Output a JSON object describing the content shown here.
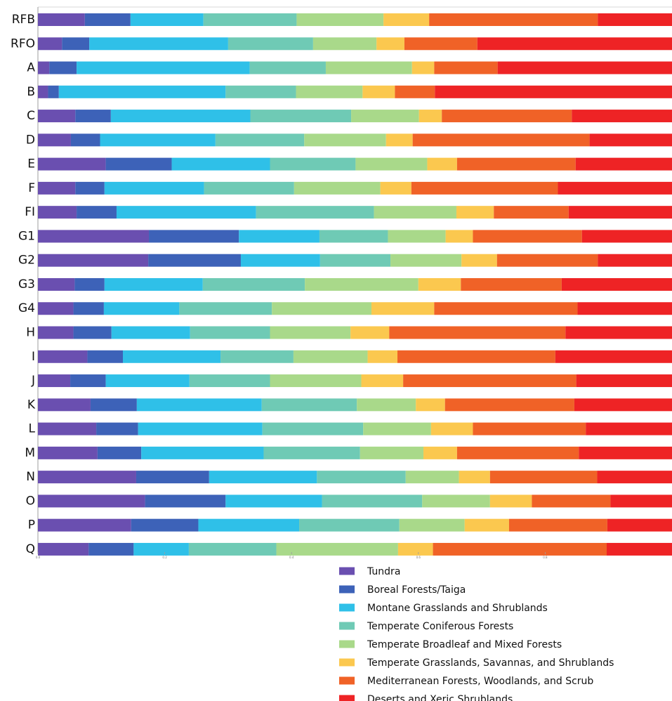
{
  "chart_data": {
    "type": "bar",
    "orientation": "horizontal",
    "stacked": true,
    "categories": [
      "RFB",
      "RFO",
      "A",
      "B",
      "C",
      "D",
      "E",
      "F",
      "FI",
      "G1",
      "G2",
      "G3",
      "G4",
      "H",
      "I",
      "J",
      "K",
      "L",
      "M",
      "N",
      "O",
      "P",
      "Q"
    ],
    "xlim": [
      0,
      1
    ],
    "x_ticks": [
      0,
      0.2,
      0.4,
      0.6,
      0.8
    ],
    "x_tick_labels": [
      "0.0",
      "0.2",
      "0.4",
      "0.6",
      "0.8"
    ],
    "grid": false,
    "legend_position": "bottom-right",
    "series": [
      {
        "name": "Tundra",
        "color": "#6a4fb0",
        "values": [
          0.074,
          0.038,
          0.018,
          0.016,
          0.059,
          0.052,
          0.107,
          0.059,
          0.061,
          0.175,
          0.174,
          0.058,
          0.056,
          0.056,
          0.078,
          0.051,
          0.083,
          0.092,
          0.094,
          0.155,
          0.169,
          0.147,
          0.08
        ]
      },
      {
        "name": "Boreal Forests/Taiga",
        "color": "#3d62b8",
        "values": [
          0.072,
          0.043,
          0.043,
          0.017,
          0.056,
          0.046,
          0.104,
          0.046,
          0.063,
          0.142,
          0.146,
          0.047,
          0.048,
          0.06,
          0.056,
          0.056,
          0.073,
          0.066,
          0.069,
          0.115,
          0.127,
          0.106,
          0.071
        ]
      },
      {
        "name": "Montane Grasslands and Shrublands",
        "color": "#2fc0e8",
        "values": [
          0.115,
          0.219,
          0.273,
          0.263,
          0.22,
          0.182,
          0.155,
          0.157,
          0.22,
          0.127,
          0.125,
          0.155,
          0.119,
          0.124,
          0.154,
          0.132,
          0.197,
          0.196,
          0.193,
          0.17,
          0.152,
          0.159,
          0.087
        ]
      },
      {
        "name": "Temperate Coniferous Forests",
        "color": "#6fcab5",
        "values": [
          0.147,
          0.134,
          0.12,
          0.111,
          0.159,
          0.14,
          0.135,
          0.142,
          0.186,
          0.108,
          0.111,
          0.161,
          0.146,
          0.126,
          0.115,
          0.127,
          0.15,
          0.159,
          0.152,
          0.14,
          0.158,
          0.158,
          0.138
        ]
      },
      {
        "name": "Temperate Broadleaf and Mixed Forests",
        "color": "#a9d98a",
        "values": [
          0.137,
          0.1,
          0.136,
          0.105,
          0.107,
          0.129,
          0.113,
          0.136,
          0.13,
          0.091,
          0.112,
          0.179,
          0.157,
          0.127,
          0.117,
          0.144,
          0.093,
          0.107,
          0.1,
          0.084,
          0.107,
          0.103,
          0.192
        ]
      },
      {
        "name": "Temperate Grasslands, Savannas, and Shrublands",
        "color": "#fbc84f",
        "values": [
          0.072,
          0.044,
          0.035,
          0.051,
          0.036,
          0.042,
          0.047,
          0.049,
          0.059,
          0.043,
          0.056,
          0.067,
          0.099,
          0.061,
          0.047,
          0.066,
          0.046,
          0.066,
          0.053,
          0.049,
          0.066,
          0.07,
          0.055
        ]
      },
      {
        "name": "Mediterranean Forests, Woodlands, and Scrub",
        "color": "#f06227",
        "values": [
          0.266,
          0.115,
          0.1,
          0.063,
          0.205,
          0.279,
          0.187,
          0.231,
          0.118,
          0.172,
          0.159,
          0.159,
          0.226,
          0.278,
          0.249,
          0.273,
          0.204,
          0.178,
          0.192,
          0.169,
          0.124,
          0.155,
          0.274
        ]
      },
      {
        "name": "Deserts and Xeric Shrublands",
        "color": "#ee2325",
        "values": [
          0.117,
          0.307,
          0.275,
          0.374,
          0.158,
          0.13,
          0.152,
          0.18,
          0.163,
          0.142,
          0.117,
          0.174,
          0.149,
          0.168,
          0.184,
          0.151,
          0.154,
          0.136,
          0.147,
          0.118,
          0.097,
          0.102,
          0.103
        ]
      }
    ]
  }
}
